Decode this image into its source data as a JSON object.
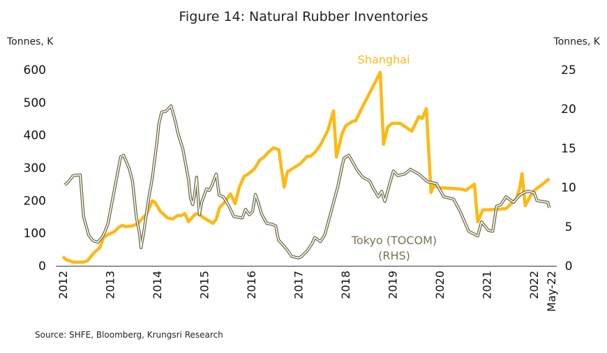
{
  "chart_data": {
    "type": "line",
    "title": "Figure 14: Natural Rubber Inventories",
    "ylabel_left": "Tonnes, K",
    "ylabel_right": "Tonnes, K",
    "ylim_left": [
      0,
      600
    ],
    "ylim_right": [
      0,
      25
    ],
    "yticks_left": [
      "0",
      "100",
      "200",
      "300",
      "400",
      "500",
      "600"
    ],
    "yticks_right": [
      "0",
      "5",
      "10",
      "15",
      "20",
      "25"
    ],
    "xlim": [
      2012,
      2022.4
    ],
    "xticks": [
      {
        "label": "2012",
        "x": 2012
      },
      {
        "label": "2013",
        "x": 2013
      },
      {
        "label": "2014",
        "x": 2014
      },
      {
        "label": "2015",
        "x": 2015
      },
      {
        "label": "2016",
        "x": 2016
      },
      {
        "label": "2017",
        "x": 2017
      },
      {
        "label": "2018",
        "x": 2018
      },
      {
        "label": "2019",
        "x": 2019
      },
      {
        "label": "2020",
        "x": 2020
      },
      {
        "label": "2021",
        "x": 2021
      },
      {
        "label": "2022",
        "x": 2022
      },
      {
        "label": "May-22",
        "x": 2022.37
      }
    ],
    "grid": false,
    "series": [
      {
        "name": "Shanghai",
        "axis": "left",
        "color": "#FDB913",
        "points": [
          [
            2012.0,
            28
          ],
          [
            2012.07,
            19
          ],
          [
            2012.22,
            11
          ],
          [
            2012.44,
            11
          ],
          [
            2012.52,
            15
          ],
          [
            2012.67,
            41
          ],
          [
            2012.79,
            56
          ],
          [
            2012.86,
            85
          ],
          [
            2012.96,
            96
          ],
          [
            2013.08,
            103
          ],
          [
            2013.19,
            118
          ],
          [
            2013.27,
            124
          ],
          [
            2013.33,
            120
          ],
          [
            2013.48,
            122
          ],
          [
            2013.6,
            130
          ],
          [
            2013.7,
            147
          ],
          [
            2013.78,
            158
          ],
          [
            2013.9,
            199
          ],
          [
            2013.96,
            194
          ],
          [
            2014.07,
            167
          ],
          [
            2014.22,
            147
          ],
          [
            2014.33,
            143
          ],
          [
            2014.44,
            154
          ],
          [
            2014.52,
            154
          ],
          [
            2014.59,
            160
          ],
          [
            2014.67,
            135
          ],
          [
            2014.81,
            158
          ],
          [
            2014.89,
            160
          ],
          [
            2014.96,
            150
          ],
          [
            2015.19,
            130
          ],
          [
            2015.26,
            143
          ],
          [
            2015.33,
            179
          ],
          [
            2015.41,
            190
          ],
          [
            2015.56,
            220
          ],
          [
            2015.66,
            190
          ],
          [
            2015.75,
            241
          ],
          [
            2015.85,
            274
          ],
          [
            2015.93,
            280
          ],
          [
            2016.07,
            297
          ],
          [
            2016.18,
            323
          ],
          [
            2016.27,
            333
          ],
          [
            2016.37,
            348
          ],
          [
            2016.47,
            361
          ],
          [
            2016.59,
            355
          ],
          [
            2016.62,
            321
          ],
          [
            2016.7,
            241
          ],
          [
            2016.77,
            288
          ],
          [
            2016.92,
            301
          ],
          [
            2017.04,
            312
          ],
          [
            2017.19,
            335
          ],
          [
            2017.26,
            335
          ],
          [
            2017.36,
            348
          ],
          [
            2017.48,
            372
          ],
          [
            2017.63,
            415
          ],
          [
            2017.75,
            474
          ],
          [
            2017.81,
            333
          ],
          [
            2017.93,
            404
          ],
          [
            2018.01,
            429
          ],
          [
            2018.15,
            442
          ],
          [
            2018.22,
            444
          ],
          [
            2018.37,
            489
          ],
          [
            2018.52,
            530
          ],
          [
            2018.74,
            592
          ],
          [
            2018.81,
            372
          ],
          [
            2018.9,
            425
          ],
          [
            2018.99,
            436
          ],
          [
            2019.16,
            436
          ],
          [
            2019.41,
            412
          ],
          [
            2019.56,
            457
          ],
          [
            2019.63,
            451
          ],
          [
            2019.72,
            481
          ],
          [
            2019.82,
            224
          ],
          [
            2019.88,
            246
          ],
          [
            2020.0,
            239
          ],
          [
            2020.44,
            235
          ],
          [
            2020.56,
            231
          ],
          [
            2020.74,
            250
          ],
          [
            2020.81,
            135
          ],
          [
            2020.92,
            171
          ],
          [
            2021.26,
            173
          ],
          [
            2021.41,
            175
          ],
          [
            2021.63,
            205
          ],
          [
            2021.7,
            237
          ],
          [
            2021.75,
            282
          ],
          [
            2021.82,
            184
          ],
          [
            2021.93,
            214
          ],
          [
            2022.0,
            229
          ],
          [
            2022.07,
            237
          ],
          [
            2022.19,
            250
          ],
          [
            2022.33,
            267
          ]
        ]
      },
      {
        "name": "Tokyo (TOCOM)",
        "name_line2": "(RHS)",
        "axis": "right",
        "color": "#6E6843",
        "points": [
          [
            2012.04,
            10.3
          ],
          [
            2012.1,
            10.6
          ],
          [
            2012.22,
            11.5
          ],
          [
            2012.37,
            11.6
          ],
          [
            2012.44,
            6.3
          ],
          [
            2012.55,
            3.9
          ],
          [
            2012.64,
            3.2
          ],
          [
            2012.74,
            3.0
          ],
          [
            2012.83,
            3.6
          ],
          [
            2012.89,
            4.3
          ],
          [
            2012.96,
            5.4
          ],
          [
            2013.08,
            9.2
          ],
          [
            2013.16,
            11.7
          ],
          [
            2013.23,
            13.9
          ],
          [
            2013.29,
            14.1
          ],
          [
            2013.41,
            12.4
          ],
          [
            2013.48,
            10.8
          ],
          [
            2013.56,
            6.3
          ],
          [
            2013.63,
            4.1
          ],
          [
            2013.66,
            2.3
          ],
          [
            2013.72,
            4.3
          ],
          [
            2013.81,
            8.1
          ],
          [
            2013.9,
            11.2
          ],
          [
            2014.0,
            15.8
          ],
          [
            2014.04,
            18.1
          ],
          [
            2014.1,
            19.6
          ],
          [
            2014.19,
            19.7
          ],
          [
            2014.3,
            20.4
          ],
          [
            2014.4,
            18.2
          ],
          [
            2014.44,
            17.0
          ],
          [
            2014.55,
            14.9
          ],
          [
            2014.67,
            11.0
          ],
          [
            2014.71,
            8.7
          ],
          [
            2014.76,
            7.8
          ],
          [
            2014.8,
            9.1
          ],
          [
            2014.84,
            11.3
          ],
          [
            2014.9,
            6.5
          ],
          [
            2014.95,
            8.1
          ],
          [
            2015.05,
            9.8
          ],
          [
            2015.11,
            9.6
          ],
          [
            2015.17,
            10.3
          ],
          [
            2015.23,
            11.3
          ],
          [
            2015.26,
            11.7
          ],
          [
            2015.32,
            9.0
          ],
          [
            2015.41,
            8.8
          ],
          [
            2015.5,
            7.9
          ],
          [
            2015.56,
            7.2
          ],
          [
            2015.63,
            6.3
          ],
          [
            2015.81,
            6.1
          ],
          [
            2015.88,
            7.2
          ],
          [
            2015.96,
            6.5
          ],
          [
            2016.03,
            6.9
          ],
          [
            2016.09,
            9.1
          ],
          [
            2016.15,
            8.1
          ],
          [
            2016.22,
            6.6
          ],
          [
            2016.33,
            5.4
          ],
          [
            2016.44,
            5.3
          ],
          [
            2016.52,
            5.1
          ],
          [
            2016.58,
            3.3
          ],
          [
            2016.77,
            2.0
          ],
          [
            2016.86,
            1.2
          ],
          [
            2017.01,
            1.0
          ],
          [
            2017.07,
            1.2
          ],
          [
            2017.19,
            1.9
          ],
          [
            2017.29,
            2.8
          ],
          [
            2017.35,
            3.6
          ],
          [
            2017.47,
            3.1
          ],
          [
            2017.56,
            3.9
          ],
          [
            2017.63,
            5.4
          ],
          [
            2017.72,
            7.4
          ],
          [
            2017.84,
            10.1
          ],
          [
            2017.93,
            12.7
          ],
          [
            2017.97,
            13.7
          ],
          [
            2018.07,
            14.1
          ],
          [
            2018.12,
            13.6
          ],
          [
            2018.25,
            12.2
          ],
          [
            2018.37,
            11.3
          ],
          [
            2018.52,
            10.8
          ],
          [
            2018.59,
            9.9
          ],
          [
            2018.7,
            8.8
          ],
          [
            2018.77,
            9.5
          ],
          [
            2018.84,
            8.2
          ],
          [
            2018.92,
            10.0
          ],
          [
            2019.02,
            12.1
          ],
          [
            2019.11,
            11.5
          ],
          [
            2019.26,
            11.7
          ],
          [
            2019.38,
            12.3
          ],
          [
            2019.56,
            11.7
          ],
          [
            2019.75,
            10.7
          ],
          [
            2019.93,
            10.5
          ],
          [
            2020.09,
            8.8
          ],
          [
            2020.3,
            8.5
          ],
          [
            2020.44,
            6.9
          ],
          [
            2020.62,
            4.4
          ],
          [
            2020.81,
            3.8
          ],
          [
            2020.89,
            5.6
          ],
          [
            2021.04,
            4.5
          ],
          [
            2021.13,
            4.4
          ],
          [
            2021.21,
            7.6
          ],
          [
            2021.3,
            7.8
          ],
          [
            2021.41,
            8.8
          ],
          [
            2021.48,
            8.5
          ],
          [
            2021.57,
            8.1
          ],
          [
            2021.7,
            9.0
          ],
          [
            2021.81,
            9.4
          ],
          [
            2021.9,
            9.5
          ],
          [
            2022.01,
            9.3
          ],
          [
            2022.07,
            8.3
          ],
          [
            2022.3,
            8.1
          ],
          [
            2022.33,
            7.4
          ]
        ]
      }
    ],
    "source": "Source: SHFE, Bloomberg, Krungsri Research"
  }
}
